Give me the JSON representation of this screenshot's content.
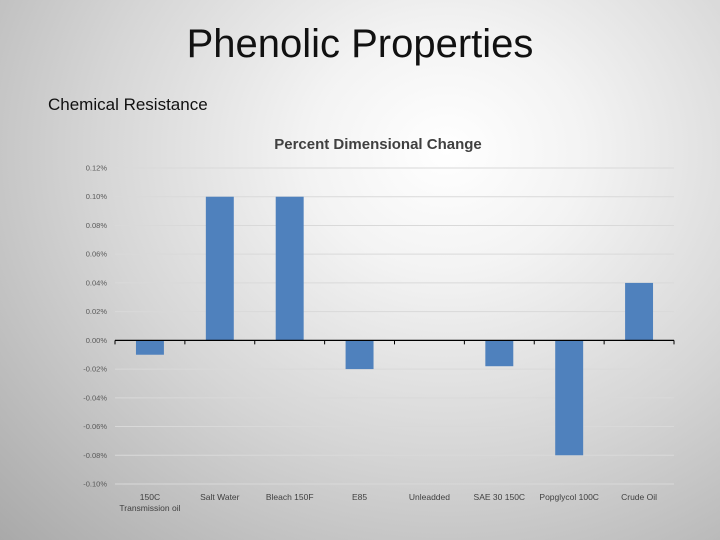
{
  "slide": {
    "title": "Phenolic Properties",
    "subtitle": "Chemical Resistance"
  },
  "colors": {
    "bar": "#4f81bd",
    "grid": "#d9d9d9",
    "axis": "#000000"
  },
  "chart_data": {
    "type": "bar",
    "title": "Percent Dimensional Change",
    "xlabel": "",
    "ylabel": "",
    "categories": [
      "150C Transmission oil",
      "Salt Water",
      "Bleach 150F",
      "E85",
      "Unleadded",
      "SAE 30 150C",
      "Popglycol 100C",
      "Crude Oil"
    ],
    "category_lines": [
      [
        "150C",
        "Transmission oil"
      ],
      [
        "Salt Water"
      ],
      [
        "Bleach 150F"
      ],
      [
        "E85"
      ],
      [
        "Unleadded"
      ],
      [
        "SAE 30 150C"
      ],
      [
        "Popglycol 100C"
      ],
      [
        "Crude Oil"
      ]
    ],
    "values": [
      -0.01,
      0.1,
      0.1,
      -0.02,
      0.0,
      -0.018,
      -0.08,
      0.04
    ],
    "ylim": [
      -0.1,
      0.12
    ],
    "yticks": [
      0.12,
      0.1,
      0.08,
      0.06,
      0.04,
      0.02,
      0.0,
      -0.02,
      -0.04,
      -0.06,
      -0.08,
      -0.1
    ],
    "ytick_labels": [
      "0.12%",
      "0.10%",
      "0.08%",
      "0.06%",
      "0.04%",
      "0.02%",
      "0.00%",
      "-0.02%",
      "-0.04%",
      "-0.06%",
      "-0.08%",
      "-0.10%"
    ],
    "grid": true,
    "unit": "%"
  }
}
